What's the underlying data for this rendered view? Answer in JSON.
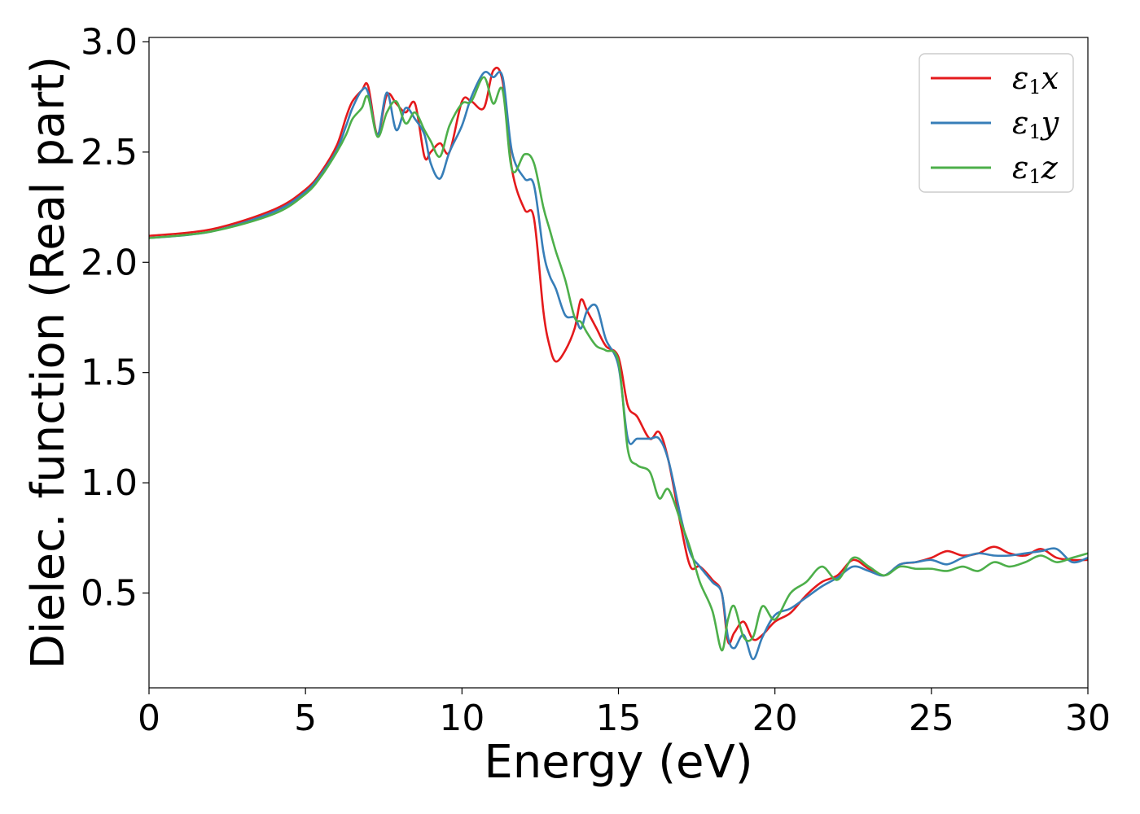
{
  "chart_data": {
    "type": "line",
    "xlabel": "Energy (eV)",
    "ylabel": "Dielec. function (Real part)",
    "xlim": [
      0,
      30
    ],
    "ylim": [
      0.07,
      3.02
    ],
    "xticks": [
      0,
      5,
      10,
      15,
      20,
      25,
      30
    ],
    "xtick_labels": [
      "0",
      "5",
      "10",
      "15",
      "20",
      "25",
      "30"
    ],
    "yticks": [
      0.5,
      1.0,
      1.5,
      2.0,
      2.5,
      3.0
    ],
    "ytick_labels": [
      "0.5",
      "1.0",
      "1.5",
      "2.0",
      "2.5",
      "3.0"
    ],
    "grid": false,
    "legend_position": "top-right",
    "series": [
      {
        "name": "ε1x",
        "legend_base": "ε",
        "legend_sub": "1",
        "legend_var": "x",
        "color": "#e41a1c",
        "x": [
          0,
          2,
          4,
          5,
          5.5,
          6,
          6.3,
          6.5,
          6.8,
          7.0,
          7.3,
          7.6,
          7.9,
          8.2,
          8.5,
          8.8,
          9.0,
          9.3,
          9.6,
          10.0,
          10.3,
          10.7,
          11.0,
          11.3,
          11.6,
          12.0,
          12.3,
          12.6,
          12.8,
          13.0,
          13.3,
          13.6,
          13.8,
          14.0,
          14.3,
          14.6,
          15.0,
          15.3,
          15.6,
          16.0,
          16.3,
          16.6,
          17.0,
          17.3,
          17.6,
          18.0,
          18.3,
          18.5,
          18.7,
          19.0,
          19.3,
          19.6,
          20.0,
          20.5,
          21.0,
          21.5,
          22.0,
          22.5,
          23.0,
          23.5,
          24.0,
          24.5,
          25.0,
          25.5,
          26.0,
          26.5,
          27.0,
          27.5,
          28.0,
          28.5,
          29.0,
          29.5,
          30.0
        ],
        "y": [
          2.12,
          2.15,
          2.24,
          2.33,
          2.41,
          2.53,
          2.66,
          2.73,
          2.78,
          2.8,
          2.58,
          2.76,
          2.72,
          2.68,
          2.72,
          2.48,
          2.5,
          2.54,
          2.5,
          2.73,
          2.73,
          2.7,
          2.87,
          2.82,
          2.42,
          2.24,
          2.2,
          1.78,
          1.62,
          1.55,
          1.6,
          1.7,
          1.83,
          1.78,
          1.7,
          1.62,
          1.57,
          1.35,
          1.3,
          1.2,
          1.23,
          1.1,
          0.8,
          0.62,
          0.62,
          0.56,
          0.5,
          0.28,
          0.32,
          0.37,
          0.29,
          0.31,
          0.37,
          0.41,
          0.49,
          0.55,
          0.58,
          0.65,
          0.61,
          0.58,
          0.63,
          0.64,
          0.66,
          0.69,
          0.67,
          0.68,
          0.71,
          0.68,
          0.67,
          0.7,
          0.66,
          0.65,
          0.65
        ]
      },
      {
        "name": "ε1y",
        "legend_base": "ε",
        "legend_sub": "1",
        "legend_var": "y",
        "color": "#377eb8",
        "x": [
          0,
          2,
          4,
          5,
          5.5,
          6,
          6.3,
          6.5,
          6.8,
          7.0,
          7.3,
          7.6,
          7.9,
          8.2,
          8.5,
          8.8,
          9.0,
          9.3,
          9.6,
          10.0,
          10.3,
          10.7,
          11.0,
          11.3,
          11.6,
          12.0,
          12.3,
          12.6,
          12.8,
          13.0,
          13.3,
          13.6,
          13.8,
          14.0,
          14.3,
          14.6,
          15.0,
          15.3,
          15.6,
          16.0,
          16.3,
          16.6,
          17.0,
          17.3,
          17.6,
          18.0,
          18.3,
          18.5,
          18.7,
          19.0,
          19.3,
          19.6,
          20.0,
          20.5,
          21.0,
          21.5,
          22.0,
          22.5,
          23.0,
          23.5,
          24.0,
          24.5,
          25.0,
          25.5,
          26.0,
          26.5,
          27.0,
          27.5,
          28.0,
          28.5,
          29.0,
          29.5,
          30.0
        ],
        "y": [
          2.11,
          2.14,
          2.23,
          2.32,
          2.4,
          2.51,
          2.62,
          2.7,
          2.78,
          2.77,
          2.58,
          2.77,
          2.6,
          2.7,
          2.65,
          2.58,
          2.45,
          2.38,
          2.5,
          2.62,
          2.75,
          2.86,
          2.84,
          2.84,
          2.5,
          2.38,
          2.35,
          2.05,
          1.94,
          1.88,
          1.76,
          1.75,
          1.7,
          1.78,
          1.8,
          1.65,
          1.53,
          1.2,
          1.2,
          1.2,
          1.2,
          1.1,
          0.84,
          0.68,
          0.62,
          0.55,
          0.5,
          0.3,
          0.25,
          0.31,
          0.2,
          0.3,
          0.4,
          0.43,
          0.48,
          0.53,
          0.57,
          0.62,
          0.6,
          0.58,
          0.63,
          0.64,
          0.65,
          0.63,
          0.66,
          0.68,
          0.67,
          0.67,
          0.68,
          0.69,
          0.7,
          0.64,
          0.66
        ]
      },
      {
        "name": "ε1z",
        "legend_base": "ε",
        "legend_sub": "1",
        "legend_var": "z",
        "color": "#4daf4a",
        "x": [
          0,
          2,
          4,
          5,
          5.5,
          6,
          6.3,
          6.5,
          6.8,
          7.0,
          7.3,
          7.6,
          7.9,
          8.2,
          8.5,
          8.8,
          9.0,
          9.3,
          9.6,
          10.0,
          10.3,
          10.7,
          11.0,
          11.3,
          11.6,
          12.0,
          12.3,
          12.6,
          12.8,
          13.0,
          13.3,
          13.6,
          13.8,
          14.0,
          14.3,
          14.6,
          15.0,
          15.3,
          15.6,
          16.0,
          16.3,
          16.6,
          17.0,
          17.3,
          17.6,
          18.0,
          18.3,
          18.5,
          18.7,
          19.0,
          19.3,
          19.6,
          20.0,
          20.5,
          21.0,
          21.5,
          22.0,
          22.5,
          23.0,
          23.5,
          24.0,
          24.5,
          25.0,
          25.5,
          26.0,
          26.5,
          27.0,
          27.5,
          28.0,
          28.5,
          29.0,
          29.5,
          30.0
        ],
        "y": [
          2.11,
          2.14,
          2.22,
          2.31,
          2.39,
          2.5,
          2.58,
          2.65,
          2.7,
          2.75,
          2.57,
          2.68,
          2.73,
          2.63,
          2.68,
          2.6,
          2.55,
          2.48,
          2.62,
          2.72,
          2.73,
          2.84,
          2.72,
          2.78,
          2.42,
          2.49,
          2.45,
          2.25,
          2.15,
          2.05,
          1.92,
          1.75,
          1.73,
          1.68,
          1.62,
          1.6,
          1.55,
          1.15,
          1.08,
          1.05,
          0.93,
          0.97,
          0.82,
          0.7,
          0.55,
          0.42,
          0.24,
          0.38,
          0.44,
          0.3,
          0.3,
          0.44,
          0.38,
          0.5,
          0.55,
          0.62,
          0.56,
          0.66,
          0.62,
          0.58,
          0.62,
          0.61,
          0.61,
          0.6,
          0.62,
          0.6,
          0.64,
          0.62,
          0.64,
          0.67,
          0.64,
          0.66,
          0.68
        ]
      }
    ]
  }
}
